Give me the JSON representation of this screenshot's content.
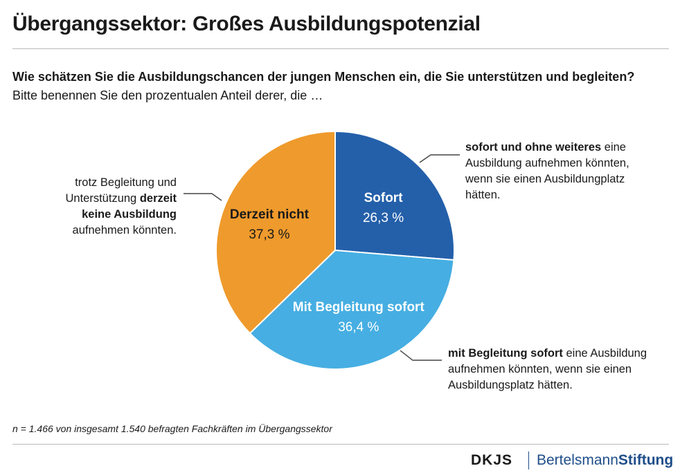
{
  "header": {
    "title": "Übergangssektor: Großes Ausbildungspotenzial",
    "question": "Wie schätzen Sie die Ausbildungschancen der jungen Menschen ein, die Sie unterstützen und begleiten?",
    "instruction": "Bitte benennen Sie den prozentualen Anteil derer, die …"
  },
  "chart_data": {
    "type": "pie",
    "title": "Übergangssektor: Großes Ausbildungspotenzial",
    "categories": [
      "Sofort",
      "Mit Begleitung sofort",
      "Derzeit nicht"
    ],
    "values": [
      26.3,
      36.4,
      37.3
    ],
    "value_labels": [
      "26,3 %",
      "36,4 %",
      "37,3 %"
    ],
    "colors": [
      "#2460aa",
      "#46aee2",
      "#ef9a2c"
    ],
    "start_angle_deg": 0,
    "direction": "clockwise"
  },
  "annotations": {
    "right_top": {
      "bold": "sofort und ohne weiteres",
      "rest_line1": " eine",
      "line2": "Ausbildung aufnehmen könnten,",
      "line3": "wenn sie einen Ausbildungplatz",
      "line4": "hätten."
    },
    "right_bottom": {
      "bold": "mit Begleitung sofort",
      "rest_line1": " eine Ausbildung",
      "line2": "aufnehmen könnten, wenn sie einen",
      "line3": "Ausbildungsplatz hätten."
    },
    "left": {
      "line1": "trotz Begleitung und",
      "line2_plain": "Unterstützung ",
      "line2_bold": "derzeit",
      "line3_bold": "keine Ausbildung",
      "line4": "aufnehmen könnten."
    }
  },
  "footer": {
    "note": "n = 1.466 von insgesamt 1.540 befragten Fachkräften im Übergangssektor",
    "logo_dkjs": "DKJS",
    "logo_bs_plain": "Bertelsmann",
    "logo_bs_bold": "Stiftung"
  }
}
